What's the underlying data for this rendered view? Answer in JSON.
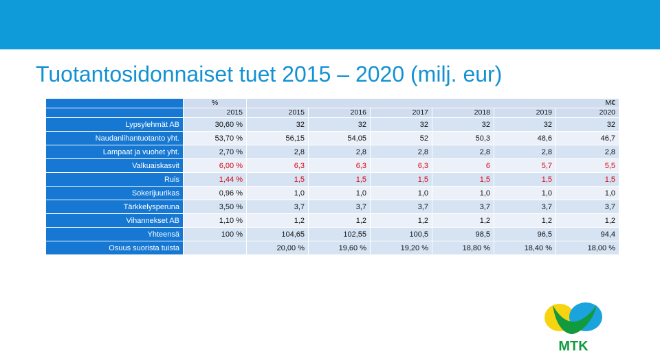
{
  "title": "Tuotantosidonnaiset tuet 2015 – 2020 (milj. eur)",
  "table": {
    "header_unit_pct": "%",
    "header_unit_eur": "M€",
    "header_years": [
      "2015",
      "2015",
      "2016",
      "2017",
      "2018",
      "2019",
      "2020"
    ],
    "rows": [
      {
        "label": "Lypsylehmät AB",
        "values": [
          "30,60 %",
          "32",
          "32",
          "32",
          "32",
          "32",
          "32"
        ]
      },
      {
        "label": "Naudanlihantuotanto yht.",
        "values": [
          "53,70 %",
          "56,15",
          "54,05",
          "52",
          "50,3",
          "48,6",
          "46,7"
        ]
      },
      {
        "label": "Lampaat ja vuohet yht.",
        "values": [
          "2,70 %",
          "2,8",
          "2,8",
          "2,8",
          "2,8",
          "2,8",
          "2,8"
        ]
      },
      {
        "label": "Valkuaiskasvit",
        "values": [
          "6,00 %",
          "6,3",
          "6,3",
          "6,3",
          "6",
          "5,7",
          "5,5"
        ]
      },
      {
        "label": "Ruis",
        "values": [
          "1,44 %",
          "1,5",
          "1,5",
          "1,5",
          "1,5",
          "1,5",
          "1,5"
        ]
      },
      {
        "label": "Sokerijuurikas",
        "values": [
          "0,96 %",
          "1,0",
          "1,0",
          "1,0",
          "1,0",
          "1,0",
          "1,0"
        ]
      },
      {
        "label": "Tärkkelysperuna",
        "values": [
          "3,50 %",
          "3,7",
          "3,7",
          "3,7",
          "3,7",
          "3,7",
          "3,7"
        ]
      },
      {
        "label": "Vihannekset AB",
        "values": [
          "1,10 %",
          "1,2",
          "1,2",
          "1,2",
          "1,2",
          "1,2",
          "1,2"
        ]
      },
      {
        "label": "Yhteensä",
        "values": [
          "100 %",
          "104,65",
          "102,55",
          "100,5",
          "98,5",
          "96,5",
          "94,4"
        ]
      },
      {
        "label": "Osuus suorista tuista",
        "values": [
          "",
          "20,00 %",
          "19,60 %",
          "19,20 %",
          "18,80 %",
          "18,40 %",
          "18,00 %"
        ]
      }
    ]
  },
  "logo": {
    "text": "MTK"
  },
  "colors": {
    "topbar": "#0f9bd9",
    "title": "#1391d3",
    "row_header": "#1678d3",
    "red_text": "#d8000c",
    "logo_green": "#129a3e",
    "logo_yellow": "#f6d410",
    "logo_blue": "#1aa3dc"
  }
}
